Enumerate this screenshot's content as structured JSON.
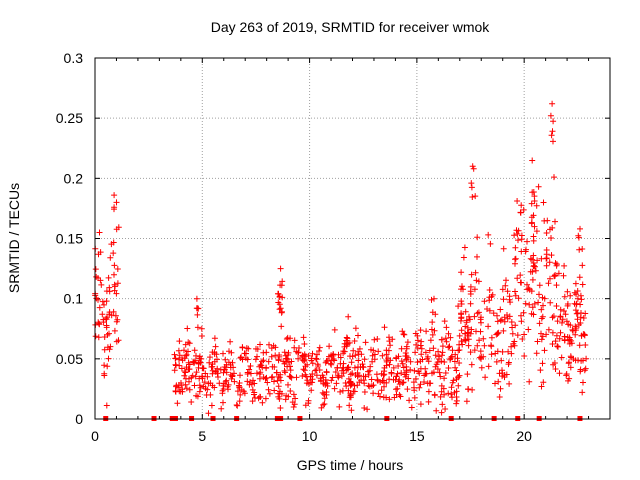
{
  "chart_data": {
    "type": "scatter",
    "title": "Day 263 of 2019, SRMTID for receiver wmok",
    "xlabel": "GPS time / hours",
    "ylabel": "SRMTID / TECUs",
    "xlim": [
      0,
      24
    ],
    "ylim": [
      0,
      0.3
    ],
    "x_ticks": [
      {
        "value": 0,
        "label": "0"
      },
      {
        "value": 5,
        "label": "5"
      },
      {
        "value": 10,
        "label": "10"
      },
      {
        "value": 15,
        "label": "15"
      },
      {
        "value": 20,
        "label": "20"
      }
    ],
    "y_ticks": [
      {
        "value": 0,
        "label": "0"
      },
      {
        "value": 0.05,
        "label": "0.05"
      },
      {
        "value": 0.1,
        "label": "0.1"
      },
      {
        "value": 0.15,
        "label": "0.15"
      },
      {
        "value": 0.2,
        "label": "0.2"
      },
      {
        "value": 0.25,
        "label": "0.25"
      },
      {
        "value": 0.3,
        "label": "0.3"
      }
    ],
    "grid": true,
    "marker": "+",
    "color": "#ff0000",
    "segments": [
      {
        "x_start": 0.0,
        "x_end": 1.1,
        "mean": 0.09,
        "spread": 0.03,
        "count": 70,
        "peak": [
          1.0,
          0.18
        ]
      },
      {
        "x_start": 3.7,
        "x_end": 8.8,
        "mean": 0.04,
        "spread": 0.013,
        "count": 260,
        "peak": [
          4.75,
          0.1
        ]
      },
      {
        "x_start": 8.6,
        "x_end": 8.75,
        "mean": 0.1,
        "spread": 0.015,
        "count": 10,
        "peak": [
          8.65,
          0.125
        ]
      },
      {
        "x_start": 8.8,
        "x_end": 15.0,
        "mean": 0.04,
        "spread": 0.013,
        "count": 330,
        "peak": [
          11.8,
          0.085
        ]
      },
      {
        "x_start": 15.0,
        "x_end": 17.0,
        "mean": 0.045,
        "spread": 0.016,
        "count": 110,
        "peak": [
          15.8,
          0.1
        ]
      },
      {
        "x_start": 17.0,
        "x_end": 19.5,
        "mean": 0.075,
        "spread": 0.025,
        "count": 140,
        "peak": [
          17.6,
          0.21
        ]
      },
      {
        "x_start": 19.5,
        "x_end": 21.6,
        "mean": 0.12,
        "spread": 0.04,
        "count": 140,
        "peak": [
          21.3,
          0.262
        ]
      },
      {
        "x_start": 21.6,
        "x_end": 22.9,
        "mean": 0.075,
        "spread": 0.022,
        "count": 90,
        "peak": [
          22.6,
          0.158
        ]
      }
    ],
    "gap_markers_x": [
      0.5,
      2.75,
      3.6,
      3.75,
      4.5,
      5.5,
      6.6,
      8.5,
      8.65,
      9.55,
      13.6,
      16.6,
      18.6,
      19.7,
      20.7,
      22.6
    ]
  }
}
